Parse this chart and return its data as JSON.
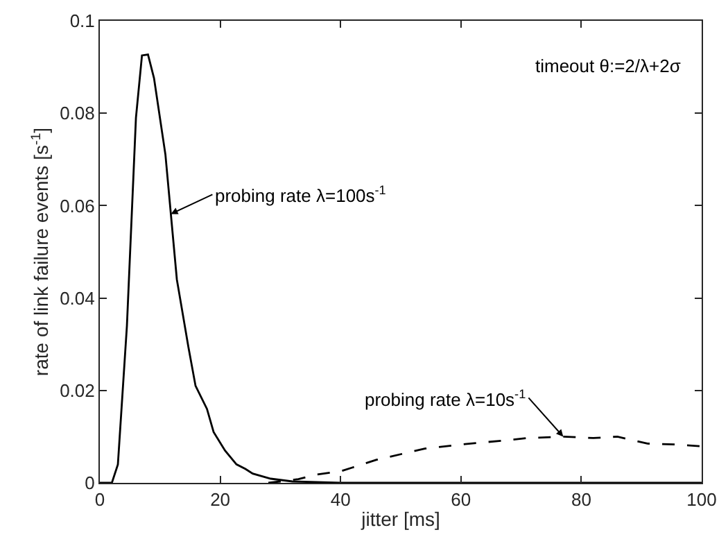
{
  "chart_data": {
    "type": "line",
    "xlabel": "jitter [ms]",
    "ylabel": "rate of link failure events [s$^{-1}$]",
    "xlim": [
      0,
      100
    ],
    "ylim": [
      0,
      0.1
    ],
    "xticks": [
      0,
      20,
      40,
      60,
      80,
      100
    ],
    "yticks": [
      0,
      0.02,
      0.04,
      0.06,
      0.08,
      0.1
    ],
    "marker": "none",
    "series": [
      {
        "color": "#000000",
        "line_style": "solid",
        "x": [
          0,
          2,
          3,
          4.5,
          6,
          7,
          8,
          9,
          10.9,
          12.8,
          14.7,
          15.9,
          17.8,
          18.9,
          20.8,
          22.7,
          24.2,
          25.4,
          28.4,
          32,
          40,
          60,
          80,
          100
        ],
        "values": [
          0,
          0,
          0.004,
          0.034,
          0.079,
          0.0925,
          0.0927,
          0.0876,
          0.071,
          0.044,
          0.0295,
          0.021,
          0.016,
          0.011,
          0.007,
          0.004,
          0.003,
          0.002,
          0.0009,
          0.0003,
          0,
          0,
          0,
          0
        ]
      },
      {
        "color": "#000000",
        "line_style": "dashed",
        "x": [
          28,
          30,
          33,
          36,
          40,
          46,
          54,
          60.7,
          68.3,
          71,
          77,
          82,
          86,
          91,
          95.5,
          100
        ],
        "values": [
          0,
          0.0003,
          0.0008,
          0.0018,
          0.0025,
          0.005,
          0.0074,
          0.0084,
          0.0093,
          0.0097,
          0.01,
          0.0097,
          0.01,
          0.0085,
          0.0083,
          0.0079
        ]
      }
    ],
    "annotations": [
      {
        "text": "probing rate λ=100s$^{-1}$",
        "x": 11.8,
        "y": 0.0582
      },
      {
        "text": "probing rate λ=10s$^{-1}$",
        "x": 77,
        "y": 0.01
      },
      "timeout θ:=2/λ+2σ"
    ]
  }
}
